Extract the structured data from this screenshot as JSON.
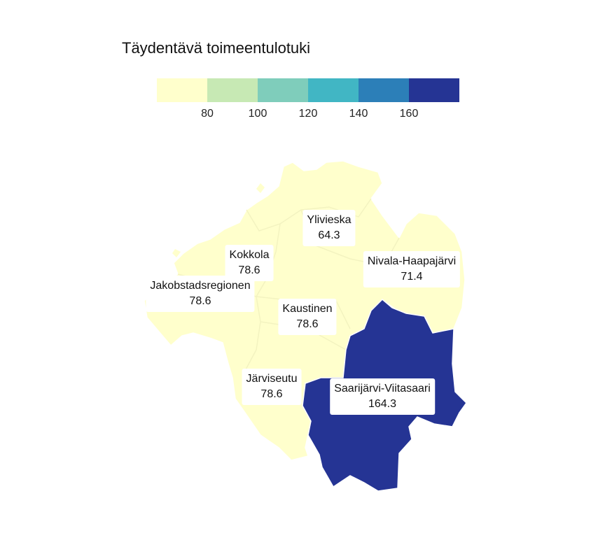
{
  "legend": {
    "title": "Täydentävä toimeentulotuki",
    "colors": [
      "#ffffcc",
      "#c7e9b4",
      "#7fcdbb",
      "#41b6c4",
      "#2c7fb8",
      "#253494"
    ],
    "ticks": [
      "80",
      "100",
      "120",
      "140",
      "160"
    ]
  },
  "regions": [
    {
      "id": "ylivieska",
      "name": "Ylivieska",
      "value": "64.3",
      "color": "#ffffcc"
    },
    {
      "id": "kokkola",
      "name": "Kokkola",
      "value": "78.6",
      "color": "#ffffcc"
    },
    {
      "id": "nivala",
      "name": "Nivala-Haapajärvi",
      "value": "71.4",
      "color": "#ffffcc"
    },
    {
      "id": "jakobstad",
      "name": "Jakobstadsregionen",
      "value": "78.6",
      "color": "#ffffcc"
    },
    {
      "id": "kaustinen",
      "name": "Kaustinen",
      "value": "78.6",
      "color": "#ffffcc"
    },
    {
      "id": "jarviseutu",
      "name": "Järviseutu",
      "value": "78.6",
      "color": "#ffffcc"
    },
    {
      "id": "saarijarvi",
      "name": "Saarijärvi-Viitasaari",
      "value": "164.3",
      "color": "#253494"
    }
  ]
}
